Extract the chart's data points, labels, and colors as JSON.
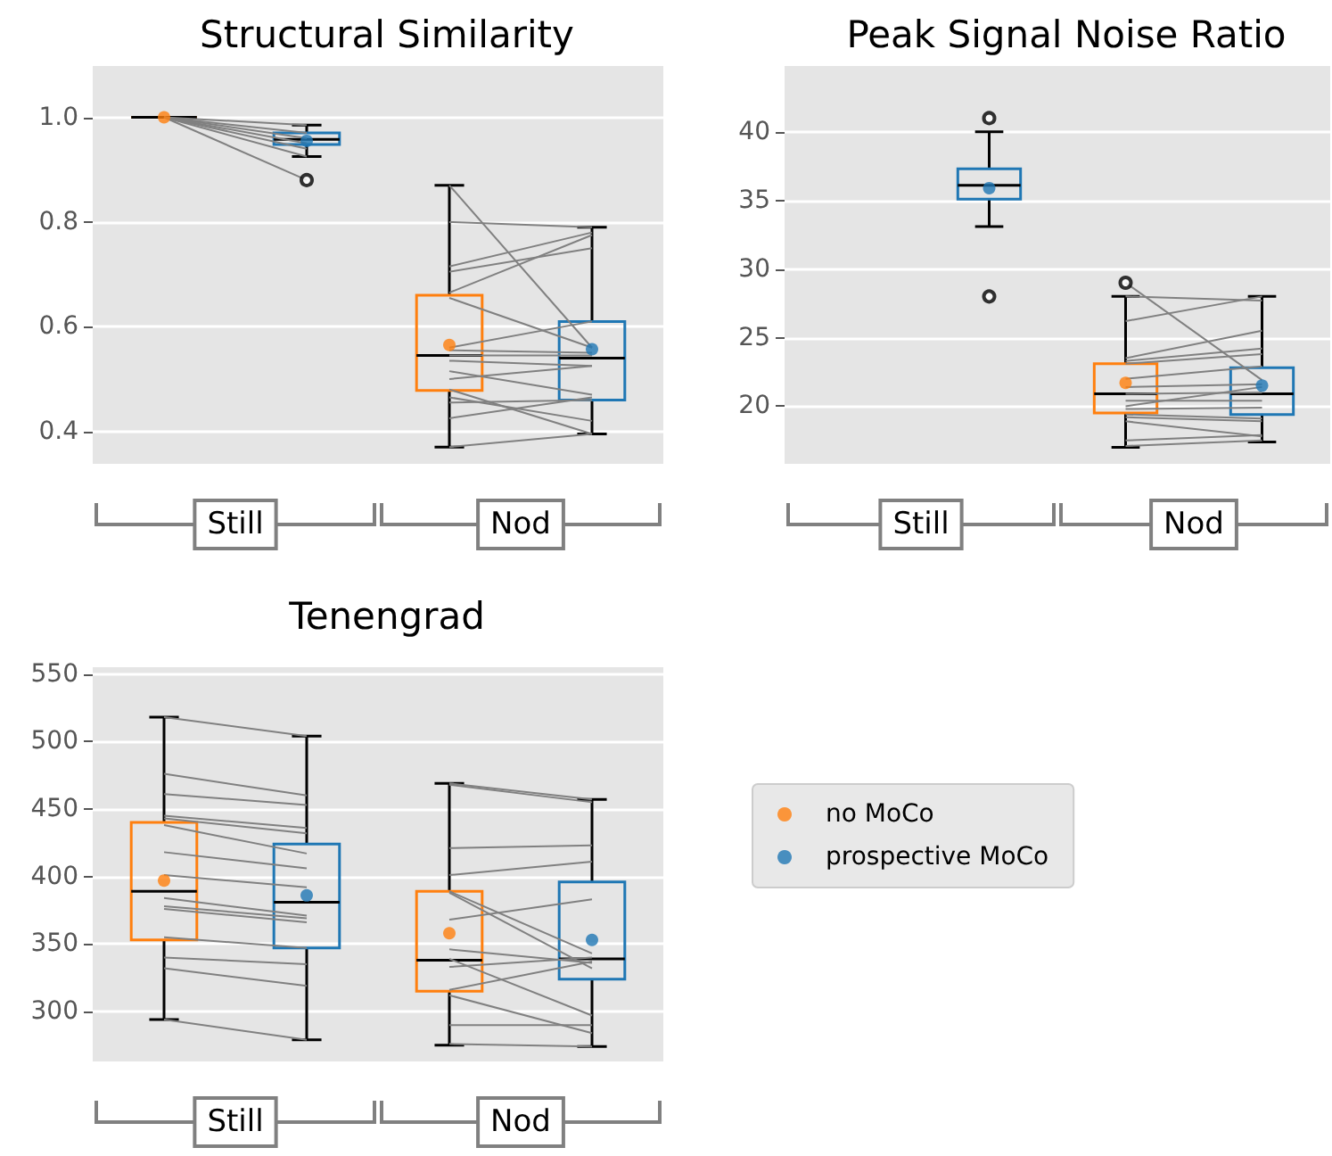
{
  "chart_data": [
    {
      "type": "box",
      "title": "Structural Similarity",
      "categories": [
        null,
        null,
        null,
        null
      ],
      "annotations": [
        "Still",
        "Nod"
      ],
      "ylim": [
        0.338,
        1.098
      ],
      "yticks": [
        {
          "value": 0.4,
          "label": "0.4"
        },
        {
          "value": 0.6,
          "label": "0.6"
        },
        {
          "value": 0.8,
          "label": "0.8"
        },
        {
          "value": 1,
          "label": "1.0"
        }
      ],
      "grid": "y",
      "legend": false,
      "series": [
        {
          "color": "#ff7f0e",
          "boxes": [
            {
              "low": 1,
              "q1": 1,
              "median": 1,
              "q3": 1,
              "high": 1,
              "mean": 1
            },
            null,
            {
              "low": 0.37,
              "q1": 0.478,
              "median": 0.545,
              "q3": 0.66,
              "high": 0.87,
              "mean": 0.565
            },
            null
          ]
        },
        {
          "color": "#1f77b4",
          "boxes": [
            null,
            {
              "low": 0.925,
              "q1": 0.948,
              "median": 0.958,
              "q3": 0.97,
              "high": 0.985,
              "mean": 0.955,
              "outliers": [
                0.88
              ]
            },
            null,
            {
              "low": 0.395,
              "q1": 0.46,
              "median": 0.54,
              "q3": 0.61,
              "high": 0.79,
              "mean": 0.557
            }
          ]
        },
        {
          "type": "line",
          "color": "#808080",
          "values": [
            1,
            0.88,
            null,
            null
          ]
        },
        {
          "type": "line",
          "color": "#808080",
          "values": [
            1,
            0.925,
            null,
            null
          ]
        },
        {
          "type": "line",
          "color": "#808080",
          "values": [
            1,
            0.94,
            null,
            null
          ]
        },
        {
          "type": "line",
          "color": "#808080",
          "values": [
            1,
            0.95,
            null,
            null
          ]
        },
        {
          "type": "line",
          "color": "#808080",
          "values": [
            1,
            0.96,
            null,
            null
          ]
        },
        {
          "type": "line",
          "color": "#808080",
          "values": [
            1,
            0.97,
            null,
            null
          ]
        },
        {
          "type": "line",
          "color": "#808080",
          "values": [
            1,
            0.985,
            null,
            null
          ]
        },
        {
          "type": "line",
          "color": "#808080",
          "values": [
            null,
            null,
            0.87,
            0.56
          ]
        },
        {
          "type": "line",
          "color": "#808080",
          "values": [
            null,
            null,
            0.8,
            0.79
          ]
        },
        {
          "type": "line",
          "color": "#808080",
          "values": [
            null,
            null,
            0.715,
            0.78
          ]
        },
        {
          "type": "line",
          "color": "#808080",
          "values": [
            null,
            null,
            0.705,
            0.75
          ]
        },
        {
          "type": "line",
          "color": "#808080",
          "values": [
            null,
            null,
            0.665,
            0.775
          ]
        },
        {
          "type": "line",
          "color": "#808080",
          "values": [
            null,
            null,
            0.655,
            0.56
          ]
        },
        {
          "type": "line",
          "color": "#808080",
          "values": [
            null,
            null,
            0.56,
            0.61
          ]
        },
        {
          "type": "line",
          "color": "#808080",
          "values": [
            null,
            null,
            0.555,
            0.55
          ]
        },
        {
          "type": "line",
          "color": "#808080",
          "values": [
            null,
            null,
            0.545,
            0.545
          ]
        },
        {
          "type": "line",
          "color": "#808080",
          "values": [
            null,
            null,
            0.535,
            0.525
          ]
        },
        {
          "type": "line",
          "color": "#808080",
          "values": [
            null,
            null,
            0.515,
            0.47
          ]
        },
        {
          "type": "line",
          "color": "#808080",
          "values": [
            null,
            null,
            0.5,
            0.525
          ]
        },
        {
          "type": "line",
          "color": "#808080",
          "values": [
            null,
            null,
            0.48,
            0.395
          ]
        },
        {
          "type": "line",
          "color": "#808080",
          "values": [
            null,
            null,
            0.465,
            0.42
          ]
        },
        {
          "type": "line",
          "color": "#808080",
          "values": [
            null,
            null,
            0.455,
            0.46
          ]
        },
        {
          "type": "line",
          "color": "#808080",
          "values": [
            null,
            null,
            0.425,
            0.465
          ]
        },
        {
          "type": "line",
          "color": "#808080",
          "values": [
            null,
            null,
            0.37,
            0.395
          ]
        }
      ]
    },
    {
      "type": "box",
      "title": "Peak Signal Noise Ratio",
      "categories": [
        null,
        null,
        null,
        null
      ],
      "annotations": [
        "Still",
        "Nod"
      ],
      "ylim": [
        15.8,
        44.8
      ],
      "yticks": [
        20,
        25,
        30,
        35,
        40
      ],
      "grid": "y",
      "legend": false,
      "series": [
        {
          "color": "#ff7f0e",
          "boxes": [
            null,
            null,
            {
              "low": 17,
              "q1": 19.5,
              "median": 20.9,
              "q3": 23.1,
              "high": 28,
              "mean": 21.7,
              "outliers": [
                29
              ]
            },
            null
          ]
        },
        {
          "color": "#1f77b4",
          "boxes": [
            null,
            {
              "low": 33.1,
              "q1": 35.1,
              "median": 36.1,
              "q3": 37.3,
              "high": 40,
              "mean": 35.9,
              "outliers": [
                41,
                28
              ]
            },
            null,
            {
              "low": 17.4,
              "q1": 19.4,
              "median": 20.9,
              "q3": 22.8,
              "high": 28,
              "mean": 21.5
            }
          ]
        },
        {
          "type": "line",
          "color": "#808080",
          "values": [
            null,
            null,
            29,
            21.9
          ]
        },
        {
          "type": "line",
          "color": "#808080",
          "values": [
            null,
            null,
            28,
            27.7
          ]
        },
        {
          "type": "line",
          "color": "#808080",
          "values": [
            null,
            null,
            26.2,
            28
          ]
        },
        {
          "type": "line",
          "color": "#808080",
          "values": [
            null,
            null,
            23.5,
            25.5
          ]
        },
        {
          "type": "line",
          "color": "#808080",
          "values": [
            null,
            null,
            23.3,
            24.2
          ]
        },
        {
          "type": "line",
          "color": "#808080",
          "values": [
            null,
            null,
            23.1,
            23.8
          ]
        },
        {
          "type": "line",
          "color": "#808080",
          "values": [
            null,
            null,
            22,
            22.9
          ]
        },
        {
          "type": "line",
          "color": "#808080",
          "values": [
            null,
            null,
            21.4,
            21.6
          ]
        },
        {
          "type": "line",
          "color": "#808080",
          "values": [
            null,
            null,
            20.9,
            21
          ]
        },
        {
          "type": "line",
          "color": "#808080",
          "values": [
            null,
            null,
            20.4,
            20.4
          ]
        },
        {
          "type": "line",
          "color": "#808080",
          "values": [
            null,
            null,
            20,
            21.4
          ]
        },
        {
          "type": "line",
          "color": "#808080",
          "values": [
            null,
            null,
            19.8,
            19.9
          ]
        },
        {
          "type": "line",
          "color": "#808080",
          "values": [
            null,
            null,
            19.4,
            19.1
          ]
        },
        {
          "type": "line",
          "color": "#808080",
          "values": [
            null,
            null,
            19.2,
            18.9
          ]
        },
        {
          "type": "line",
          "color": "#808080",
          "values": [
            null,
            null,
            18.9,
            17.8
          ]
        },
        {
          "type": "line",
          "color": "#808080",
          "values": [
            null,
            null,
            17.5,
            17.9
          ]
        },
        {
          "type": "line",
          "color": "#808080",
          "values": [
            null,
            null,
            17.1,
            17.5
          ]
        }
      ]
    },
    {
      "type": "box",
      "title": "Tenengrad",
      "categories": [
        null,
        null,
        null,
        null
      ],
      "annotations": [
        "Still",
        "Nod"
      ],
      "ylim": [
        263,
        555
      ],
      "yticks": [
        300,
        350,
        400,
        450,
        500,
        550
      ],
      "grid": "y",
      "legend": "right",
      "series": [
        {
          "name": "no MoCo",
          "color": "#ff7f0e",
          "boxes": [
            {
              "low": 294,
              "q1": 353,
              "median": 389,
              "q3": 440,
              "high": 518,
              "mean": 397
            },
            null,
            {
              "low": 275,
              "q1": 315,
              "median": 338,
              "q3": 389,
              "high": 469,
              "mean": 358
            },
            null
          ]
        },
        {
          "name": "prospective MoCo",
          "color": "#1f77b4",
          "boxes": [
            null,
            {
              "low": 279,
              "q1": 347,
              "median": 381,
              "q3": 424,
              "high": 504,
              "mean": 386
            },
            null,
            {
              "low": 274,
              "q1": 324,
              "median": 339,
              "q3": 396,
              "high": 457,
              "mean": 353
            }
          ]
        },
        {
          "type": "line",
          "color": "#808080",
          "values": [
            518,
            504,
            null,
            null
          ]
        },
        {
          "type": "line",
          "color": "#808080",
          "values": [
            476,
            460,
            null,
            null
          ]
        },
        {
          "type": "line",
          "color": "#808080",
          "values": [
            461,
            453,
            null,
            null
          ]
        },
        {
          "type": "line",
          "color": "#808080",
          "values": [
            445,
            436,
            null,
            null
          ]
        },
        {
          "type": "line",
          "color": "#808080",
          "values": [
            443,
            432,
            null,
            null
          ]
        },
        {
          "type": "line",
          "color": "#808080",
          "values": [
            438,
            417,
            null,
            null
          ]
        },
        {
          "type": "line",
          "color": "#808080",
          "values": [
            418,
            406,
            null,
            null
          ]
        },
        {
          "type": "line",
          "color": "#808080",
          "values": [
            401,
            392,
            null,
            null
          ]
        },
        {
          "type": "line",
          "color": "#808080",
          "values": [
            384,
            371,
            null,
            null
          ]
        },
        {
          "type": "line",
          "color": "#808080",
          "values": [
            378,
            369,
            null,
            null
          ]
        },
        {
          "type": "line",
          "color": "#808080",
          "values": [
            376,
            366,
            null,
            null
          ]
        },
        {
          "type": "line",
          "color": "#808080",
          "values": [
            355,
            347,
            null,
            null
          ]
        },
        {
          "type": "line",
          "color": "#808080",
          "values": [
            340,
            335,
            null,
            null
          ]
        },
        {
          "type": "line",
          "color": "#808080",
          "values": [
            332,
            319,
            null,
            null
          ]
        },
        {
          "type": "line",
          "color": "#808080",
          "values": [
            294,
            279,
            null,
            null
          ]
        },
        {
          "type": "line",
          "color": "#808080",
          "values": [
            null,
            null,
            469,
            457
          ]
        },
        {
          "type": "line",
          "color": "#808080",
          "values": [
            null,
            null,
            468,
            455
          ]
        },
        {
          "type": "line",
          "color": "#808080",
          "values": [
            null,
            null,
            421,
            423
          ]
        },
        {
          "type": "line",
          "color": "#808080",
          "values": [
            null,
            null,
            401,
            411
          ]
        },
        {
          "type": "line",
          "color": "#808080",
          "values": [
            null,
            null,
            389,
            343
          ]
        },
        {
          "type": "line",
          "color": "#808080",
          "values": [
            null,
            null,
            388,
            332
          ]
        },
        {
          "type": "line",
          "color": "#808080",
          "values": [
            null,
            null,
            368,
            383
          ]
        },
        {
          "type": "line",
          "color": "#808080",
          "values": [
            null,
            null,
            346,
            336
          ]
        },
        {
          "type": "line",
          "color": "#808080",
          "values": [
            null,
            null,
            339,
            297
          ]
        },
        {
          "type": "line",
          "color": "#808080",
          "values": [
            null,
            null,
            333,
            340
          ]
        },
        {
          "type": "line",
          "color": "#808080",
          "values": [
            null,
            null,
            316,
            337
          ]
        },
        {
          "type": "line",
          "color": "#808080",
          "values": [
            null,
            null,
            312,
            284
          ]
        },
        {
          "type": "line",
          "color": "#808080",
          "values": [
            null,
            null,
            290,
            290
          ]
        },
        {
          "type": "line",
          "color": "#808080",
          "values": [
            null,
            null,
            276,
            274
          ]
        }
      ]
    }
  ]
}
